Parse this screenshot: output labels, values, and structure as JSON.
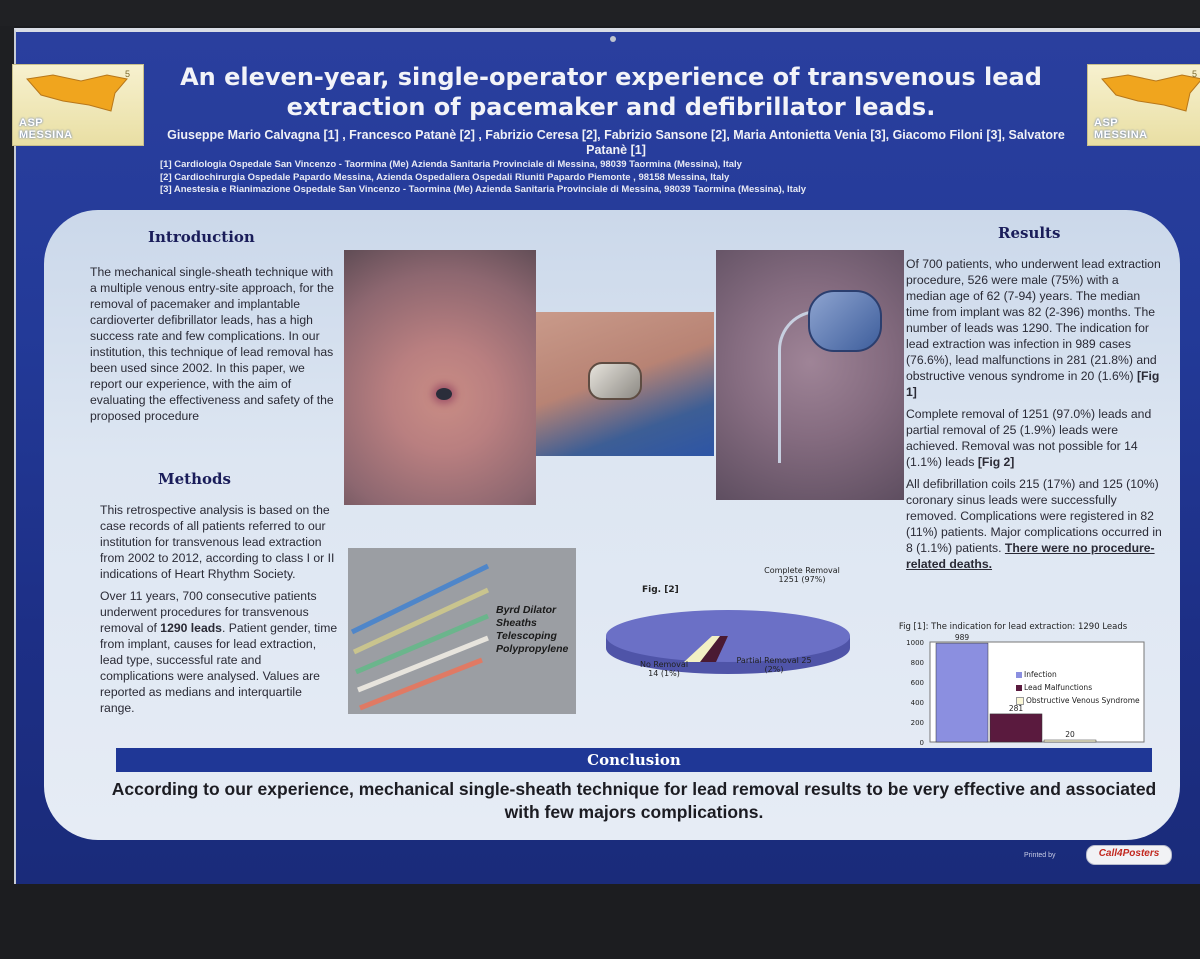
{
  "poster": {
    "title": "An eleven-year, single-operator experience of transvenous lead extraction of pacemaker and defibrillator leads.",
    "authors": "Giuseppe Mario Calvagna [1] , Francesco Patanè [2] , Fabrizio Ceresa [2], Fabrizio Sansone [2], Maria Antonietta Venia [3], Giacomo Filoni [3], Salvatore Patanè [1]",
    "affiliations": [
      "[1] Cardiologia Ospedale San Vincenzo - Taormina (Me) Azienda Sanitaria Provinciale di Messina, 98039 Taormina (Messina), Italy",
      "[2] Cardiochirurgia Ospedale Papardo Messina, Azienda Ospedaliera Ospedali Riuniti Papardo Piemonte , 98158 Messina, Italy",
      "[3] Anestesia e Rianimazione Ospedale San Vincenzo - Taormina (Me) Azienda Sanitaria Provinciale di Messina, 98039 Taormina (Messina), Italy"
    ],
    "logo": {
      "line1": "ASP",
      "line2": "MESSINA",
      "number": "5"
    }
  },
  "introduction": {
    "heading": "Introduction",
    "text": "The mechanical single-sheath technique with a multiple venous entry-site approach, for the removal of pacemaker and implantable cardioverter defibrillator leads, has a high success rate and few complications. In our institution, this technique of lead removal has been used since 2002. In this paper, we report our experience, with the aim of evaluating the effectiveness and safety of the proposed procedure"
  },
  "methods": {
    "heading": "Methods",
    "p1": "This retrospective analysis is based on the case records of all patients referred to our institution for transvenous lead extraction from 2002 to 2012, according to class I or II indications of Heart Rhythm Society.",
    "p2_before": "Over 11 years, 700 consecutive patients underwent procedures for transvenous removal of ",
    "p2_bold": "1290 leads",
    "p2_after": ". Patient gender, time from implant, causes for lead extraction, lead type, successful rate and complications were analysed. Values are reported as medians and interquartile range."
  },
  "sheath_labels": [
    "Byrd Dilator",
    "Sheaths",
    "Telescoping",
    "Polypropylene"
  ],
  "results": {
    "heading": "Results",
    "p1_text": "Of 700 patients, who underwent lead extraction procedure, 526 were male (75%) with a median age of 62 (7-94) years. The median time from implant was 82 (2-396) months. The number of leads was 1290. The indication for lead extraction was infection in 989 cases (76.6%), lead malfunctions in 281 (21.8%) and obstructive venous syndrome in 20 (1.6%) ",
    "p1_ref": "[Fig 1]",
    "p2_text": "Complete removal of 1251 (97.0%) leads and partial removal of 25 (1.9%) leads were achieved. Removal was not possible for 14 (1.1%) leads ",
    "p2_ref": "[Fig 2]",
    "p3_text": "All defibrillation coils 215 (17%) and 125 (10%) coronary sinus leads were successfully removed. Complications were registered in 82 (11%) patients. Major complications occurred in 8 (1.1%) patients.",
    "p3_emph": "There were no procedure-related deaths."
  },
  "pie": {
    "fig_label": "Fig. [2]",
    "complete_label": "Complete Removal",
    "complete_value": "1251 (97%)",
    "none_label": "No Removal",
    "none_value": "14 (1%)",
    "partial_label": "Partial Removal 25",
    "partial_value": "(2%)",
    "colors": {
      "complete": "#6b70c6",
      "partial": "#4a1a32",
      "none": "#f2f0c4"
    }
  },
  "chart_data": {
    "type": "bar",
    "title": "Fig [1]: The indication for lead extraction: 1290 Leads",
    "categories": [
      "Infection",
      "Lead Malfunctions",
      "Obstructive Venous Syndrome"
    ],
    "values": [
      989,
      281,
      20
    ],
    "data_labels": [
      "989",
      "281",
      "20"
    ],
    "yticks": [
      "1000",
      "800",
      "600",
      "400",
      "200",
      "0"
    ],
    "ylim": [
      0,
      1000
    ],
    "legend_position": "right",
    "colors": [
      "#8b8fe0",
      "#5a1a3e",
      "#fbf7d6"
    ]
  },
  "conclusion": {
    "heading": "Conclusion",
    "text": "According to our experience, mechanical single-sheath technique for lead removal results to be very effective and associated with few majors complications."
  },
  "footer": {
    "printed_by": "Printed by",
    "brand": "Call4Posters"
  }
}
